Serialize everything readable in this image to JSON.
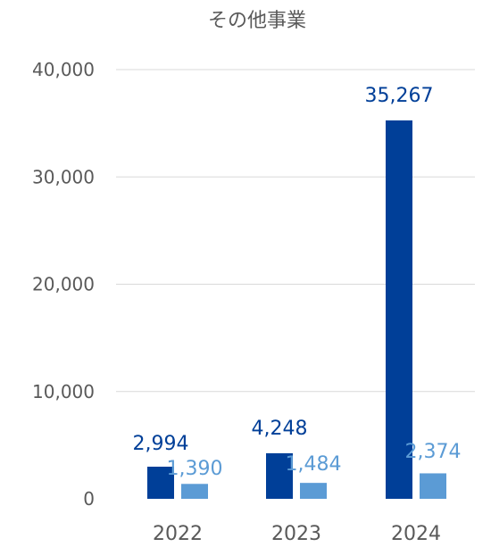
{
  "chart_data": {
    "type": "bar",
    "title": "その他事業",
    "xlabel": "",
    "ylabel": "",
    "categories": [
      "2022",
      "2023",
      "2024"
    ],
    "series": [
      {
        "values": [
          2994,
          4248,
          35267
        ],
        "labels": [
          "2,994",
          "4,248",
          "35,267"
        ],
        "color": "#003f98"
      },
      {
        "values": [
          1390,
          1484,
          2374
        ],
        "labels": [
          "1,390",
          "1,484",
          "2,374"
        ],
        "color": "#5b9bd5"
      }
    ],
    "ylim": [
      0,
      40000
    ],
    "yticks": [
      0,
      10000,
      20000,
      30000,
      40000
    ],
    "ytick_labels": [
      "0",
      "10,000",
      "20,000",
      "30,000",
      "40,000"
    ],
    "grid": true,
    "legend": "none"
  }
}
